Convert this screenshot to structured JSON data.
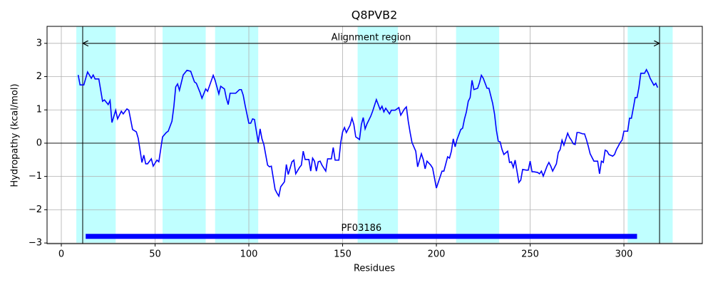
{
  "chart_data": {
    "type": "line",
    "title": "Q8PVB2",
    "xlabel": "Residues",
    "ylabel": "Hydropathy (kcal/mol)",
    "xlim": [
      -7.6,
      341.8
    ],
    "ylim": [
      -3.02,
      3.51
    ],
    "xticks": [
      0,
      50,
      100,
      150,
      200,
      250,
      300
    ],
    "yticks": [
      {
        "value": -3,
        "label": "−3"
      },
      {
        "value": -2,
        "label": "−2"
      },
      {
        "value": -1,
        "label": "−1"
      },
      0,
      1,
      2,
      3
    ],
    "grid": true,
    "hline": 0,
    "color": "#0000ff",
    "span_color": "#c0ffff",
    "spans": [
      [
        8,
        29
      ],
      [
        54,
        77
      ],
      [
        82,
        105
      ],
      [
        158,
        179.5
      ],
      [
        210.5,
        233.5
      ],
      [
        302,
        326
      ]
    ],
    "alignment": {
      "label": "Alignment region",
      "start": 11.4,
      "end": 319,
      "y": 3
    },
    "domain": {
      "label": "PF03186",
      "start": 13,
      "end": 307,
      "y": -2.8,
      "color": "#0000ff"
    },
    "x": [
      9,
      10,
      12,
      14,
      16,
      17,
      18,
      20,
      22,
      23,
      25,
      26,
      27,
      29,
      30,
      32,
      33,
      35,
      36,
      38,
      40,
      41,
      43,
      44,
      45,
      46,
      48,
      49,
      51,
      52,
      54,
      56,
      57,
      59,
      60,
      61,
      62,
      63,
      65,
      67,
      69,
      71,
      72,
      74,
      75,
      77,
      78,
      81,
      82,
      84,
      85,
      87,
      88,
      89,
      90,
      92,
      93,
      95,
      96,
      97,
      98,
      100,
      101,
      102,
      103,
      105,
      106,
      107,
      108,
      110,
      111,
      112,
      114,
      115,
      116,
      117,
      119,
      120,
      121,
      123,
      124,
      125,
      127,
      128,
      129,
      130,
      132,
      133,
      134,
      135,
      136,
      137,
      138,
      139,
      141,
      142,
      144,
      145,
      146,
      148,
      149,
      150,
      151,
      152,
      154,
      155,
      156,
      157,
      159,
      160,
      161,
      162,
      163,
      165,
      166,
      168,
      170,
      171,
      172,
      173,
      175,
      176,
      178,
      180,
      181,
      183,
      184,
      185,
      186,
      187,
      189,
      190,
      192,
      193,
      194,
      195,
      197,
      198,
      200,
      202,
      203,
      204,
      206,
      207,
      208,
      209,
      210,
      211,
      213,
      214,
      215,
      216,
      217,
      218,
      219,
      220,
      222,
      223,
      224,
      225,
      227,
      228,
      230,
      231,
      232,
      233,
      234,
      235,
      236,
      238,
      239,
      240,
      241,
      242,
      244,
      245,
      246,
      248,
      249,
      250,
      251,
      252,
      254,
      255,
      256,
      257,
      259,
      260,
      261,
      262,
      264,
      265,
      266,
      267,
      268,
      270,
      271,
      272,
      273,
      274,
      275,
      276,
      278,
      279,
      280,
      281,
      282,
      284,
      285,
      286,
      287,
      288,
      289,
      290,
      291,
      292,
      294,
      295,
      296,
      297,
      298,
      299,
      300,
      302,
      303,
      304,
      305,
      306,
      307,
      308,
      309,
      311,
      312,
      313,
      314,
      316,
      317,
      318
    ],
    "values": [
      2.05,
      1.75,
      1.75,
      2.14,
      1.95,
      2.05,
      1.93,
      1.93,
      1.26,
      1.3,
      1.16,
      1.28,
      0.62,
      0.99,
      0.73,
      0.96,
      0.88,
      1.03,
      0.99,
      0.41,
      0.34,
      0.15,
      -0.58,
      -0.36,
      -0.62,
      -0.62,
      -0.47,
      -0.69,
      -0.51,
      -0.56,
      0.19,
      0.32,
      0.36,
      0.66,
      1.09,
      1.69,
      1.78,
      1.59,
      2.05,
      2.19,
      2.16,
      1.84,
      1.8,
      1.52,
      1.35,
      1.63,
      1.56,
      2.04,
      1.89,
      1.48,
      1.71,
      1.63,
      1.35,
      1.16,
      1.5,
      1.5,
      1.5,
      1.61,
      1.61,
      1.44,
      1.14,
      0.6,
      0.6,
      0.73,
      0.71,
      0.02,
      0.43,
      0.13,
      -0.04,
      -0.66,
      -0.71,
      -0.69,
      -1.39,
      -1.5,
      -1.59,
      -1.31,
      -1.16,
      -0.64,
      -0.94,
      -0.56,
      -0.51,
      -0.92,
      -0.73,
      -0.66,
      -0.24,
      -0.49,
      -0.49,
      -0.84,
      -0.45,
      -0.54,
      -0.84,
      -0.56,
      -0.54,
      -0.66,
      -0.84,
      -0.47,
      -0.47,
      -0.13,
      -0.51,
      -0.51,
      0.02,
      0.34,
      0.47,
      0.32,
      0.54,
      0.75,
      0.56,
      0.19,
      0.11,
      0.56,
      0.77,
      0.43,
      0.58,
      0.81,
      0.96,
      1.31,
      1.01,
      1.11,
      0.94,
      1.05,
      0.88,
      0.99,
      0.99,
      1.07,
      0.84,
      1.03,
      1.09,
      0.66,
      0.32,
      0.02,
      -0.24,
      -0.71,
      -0.32,
      -0.49,
      -0.77,
      -0.54,
      -0.66,
      -0.75,
      -1.35,
      -1.01,
      -0.84,
      -0.84,
      -0.41,
      -0.45,
      -0.24,
      0.13,
      -0.11,
      0.11,
      0.41,
      0.45,
      0.73,
      0.94,
      1.26,
      1.37,
      1.89,
      1.61,
      1.65,
      1.82,
      2.04,
      1.95,
      1.65,
      1.65,
      1.2,
      0.88,
      0.39,
      0.06,
      0.04,
      -0.19,
      -0.34,
      -0.24,
      -0.58,
      -0.56,
      -0.73,
      -0.51,
      -1.18,
      -1.11,
      -0.79,
      -0.81,
      -0.81,
      -0.54,
      -0.86,
      -0.86,
      -0.88,
      -0.92,
      -0.84,
      -0.99,
      -0.69,
      -0.58,
      -0.69,
      -0.84,
      -0.62,
      -0.28,
      -0.19,
      0.09,
      -0.06,
      0.3,
      0.17,
      0.09,
      -0.02,
      -0.04,
      0.32,
      0.32,
      0.28,
      0.28,
      0.11,
      -0.09,
      -0.32,
      -0.54,
      -0.54,
      -0.54,
      -0.92,
      -0.54,
      -0.58,
      -0.21,
      -0.24,
      -0.34,
      -0.39,
      -0.34,
      -0.19,
      -0.09,
      0.02,
      0.09,
      0.36,
      0.36,
      0.75,
      0.75,
      1.05,
      1.37,
      1.37,
      1.67,
      2.1,
      2.1,
      2.21,
      2.1,
      1.95,
      1.74,
      1.8,
      1.67
    ]
  }
}
